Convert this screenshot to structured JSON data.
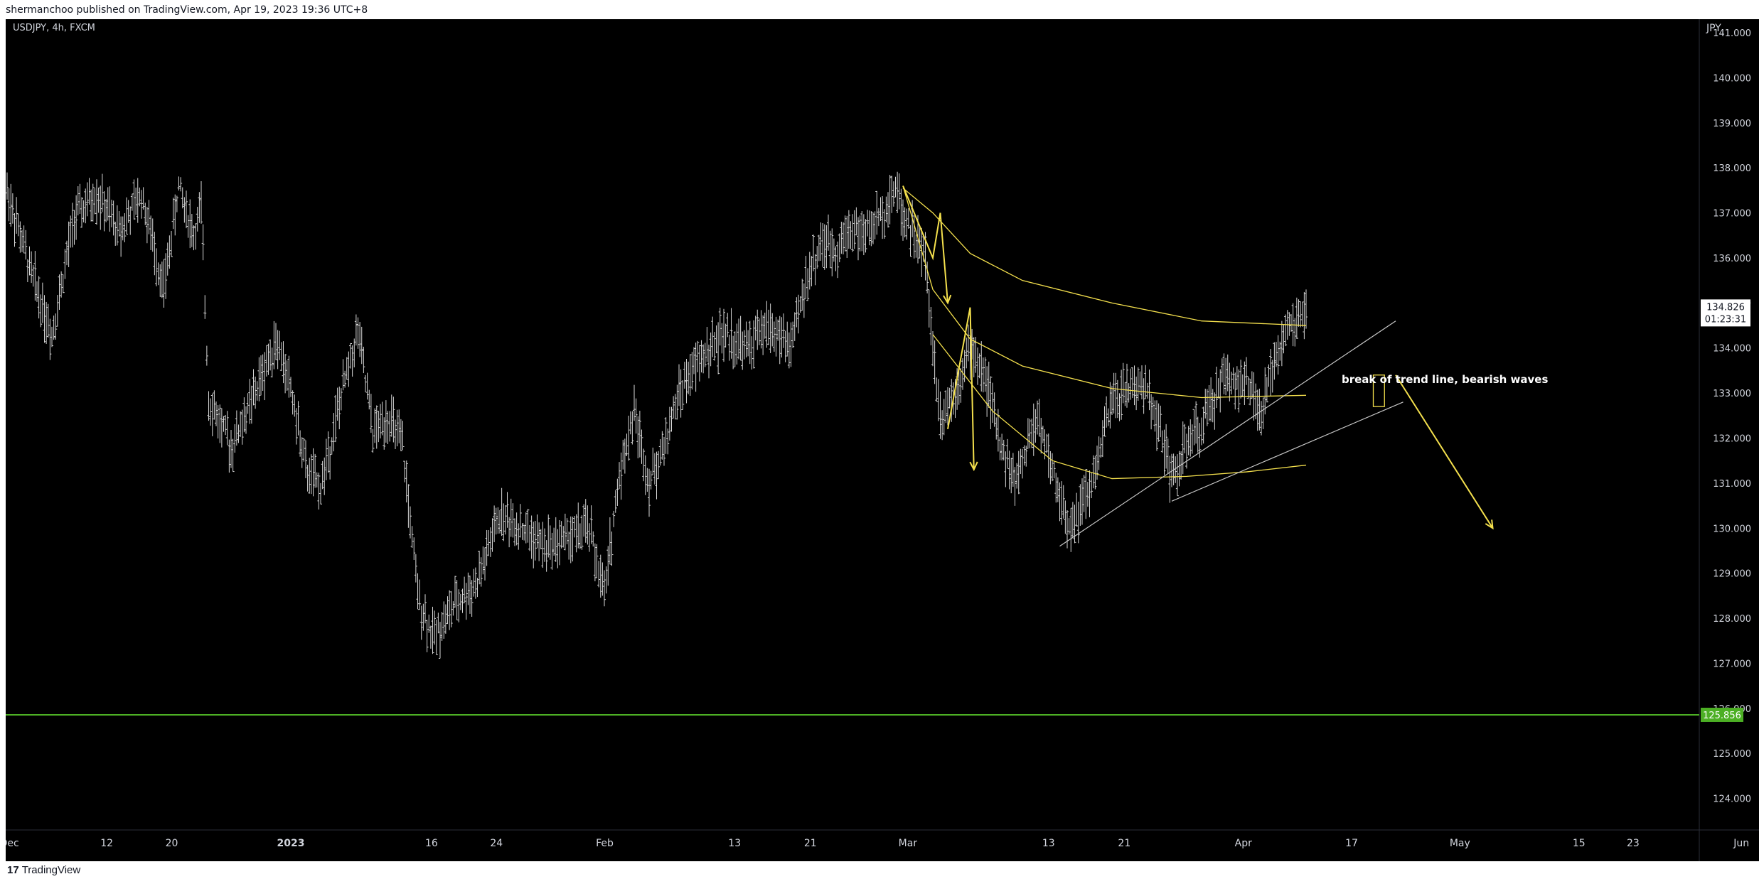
{
  "header": {
    "published_text": "shermanchoo published on TradingView.com, Apr 19, 2023 19:36 UTC+8"
  },
  "footer": {
    "brand": "TradingView",
    "brand_mark": "17"
  },
  "chart": {
    "symbol_label": "USDJPY, 4h, FXCM",
    "currency": "JPY",
    "price_badge": {
      "price": "134.826",
      "countdown": "01:23:31"
    },
    "support_badge": "125.856",
    "annotation": "break of trend line, bearish waves",
    "colors": {
      "background": "#000000",
      "bars": "#d8d8d8",
      "drawing": "#f4e04d",
      "trendline": "#c8c8c8",
      "support": "#4caf24",
      "axis_text": "#d1d4dc"
    }
  },
  "chart_data": {
    "type": "ohlc",
    "timeframe": "4h",
    "y_axis": {
      "ticks": [
        "124.000",
        "125.000",
        "126.000",
        "127.000",
        "128.000",
        "129.000",
        "130.000",
        "131.000",
        "132.000",
        "133.000",
        "134.000",
        "135.000",
        "136.000",
        "137.000",
        "138.000",
        "139.000",
        "140.000",
        "141.000"
      ],
      "range": [
        123.3,
        141.3
      ]
    },
    "x_axis": {
      "ticks": [
        "Dec",
        "12",
        "20",
        "2023",
        "16",
        "24",
        "Feb",
        "13",
        "21",
        "Mar",
        "13",
        "21",
        "Apr",
        "17",
        "May",
        "15",
        "23",
        "Jun"
      ]
    },
    "price_path": [
      [
        0,
        137.5
      ],
      [
        3,
        135.8
      ],
      [
        6,
        134.3
      ],
      [
        9,
        136.9
      ],
      [
        12,
        137.4
      ],
      [
        15,
        136.6
      ],
      [
        18,
        137.4
      ],
      [
        21,
        135.3
      ],
      [
        23,
        137.6
      ],
      [
        25,
        136.5
      ],
      [
        26,
        137.1
      ],
      [
        27,
        132.9
      ],
      [
        30,
        131.8
      ],
      [
        33,
        132.9
      ],
      [
        36,
        134.2
      ],
      [
        38,
        133.1
      ],
      [
        40,
        131.3
      ],
      [
        42,
        130.9
      ],
      [
        45,
        133.1
      ],
      [
        47,
        134.4
      ],
      [
        49,
        132.1
      ],
      [
        51,
        132.5
      ],
      [
        53,
        131.8
      ],
      [
        55,
        128.5
      ],
      [
        57,
        127.6
      ],
      [
        60,
        128.3
      ],
      [
        63,
        128.8
      ],
      [
        66,
        130.3
      ],
      [
        69,
        130.0
      ],
      [
        72,
        129.6
      ],
      [
        75,
        129.8
      ],
      [
        78,
        130.0
      ],
      [
        80,
        128.5
      ],
      [
        82,
        131.2
      ],
      [
        84,
        132.6
      ],
      [
        86,
        131.0
      ],
      [
        88,
        131.8
      ],
      [
        90,
        133.0
      ],
      [
        93,
        133.8
      ],
      [
        96,
        134.3
      ],
      [
        99,
        134.0
      ],
      [
        102,
        134.5
      ],
      [
        105,
        134.0
      ],
      [
        107,
        135.5
      ],
      [
        109,
        136.3
      ],
      [
        111,
        136.2
      ],
      [
        113,
        136.7
      ],
      [
        115,
        136.5
      ],
      [
        118,
        137.2
      ],
      [
        119,
        137.6
      ],
      [
        120,
        137.0
      ],
      [
        123,
        136.0
      ],
      [
        124,
        134.0
      ],
      [
        125,
        132.5
      ],
      [
        127,
        133.1
      ],
      [
        129,
        134.0
      ],
      [
        131,
        133.4
      ],
      [
        133,
        131.9
      ],
      [
        135,
        131.0
      ],
      [
        138,
        132.5
      ],
      [
        141,
        130.7
      ],
      [
        142,
        130.0
      ],
      [
        145,
        130.8
      ],
      [
        148,
        132.8
      ],
      [
        151,
        133.2
      ],
      [
        153,
        133.0
      ],
      [
        155,
        131.8
      ],
      [
        156,
        131.1
      ],
      [
        158,
        131.8
      ],
      [
        160,
        132.3
      ],
      [
        163,
        133.4
      ],
      [
        166,
        133.2
      ],
      [
        168,
        132.5
      ],
      [
        170,
        133.9
      ],
      [
        172,
        134.5
      ],
      [
        174,
        134.8
      ]
    ],
    "ma_lines": [
      {
        "points": [
          [
            120,
            137.55
          ],
          [
            124,
            137.0
          ],
          [
            129,
            136.1
          ],
          [
            136,
            135.5
          ],
          [
            148,
            135.0
          ],
          [
            160,
            134.6
          ],
          [
            174,
            134.5
          ]
        ]
      },
      {
        "points": [
          [
            120,
            137.6
          ],
          [
            124,
            135.3
          ],
          [
            129,
            134.2
          ],
          [
            136,
            133.6
          ],
          [
            148,
            133.1
          ],
          [
            160,
            132.9
          ],
          [
            174,
            132.95
          ]
        ]
      },
      {
        "points": [
          [
            124,
            134.3
          ],
          [
            132,
            132.6
          ],
          [
            140,
            131.5
          ],
          [
            148,
            131.1
          ],
          [
            158,
            131.15
          ],
          [
            166,
            131.25
          ],
          [
            174,
            131.4
          ]
        ]
      }
    ],
    "trend_lines": [
      {
        "from": [
          141,
          129.6
        ],
        "to": [
          186,
          134.6
        ]
      },
      {
        "from": [
          156,
          130.6
        ],
        "to": [
          187,
          132.8
        ]
      }
    ],
    "wave_arrows": [
      [
        [
          120,
          137.6
        ],
        [
          124,
          136.0
        ],
        [
          125,
          137.0
        ],
        [
          126,
          135.0
        ]
      ],
      [
        [
          126,
          132.2
        ],
        [
          129,
          134.9
        ],
        [
          129.5,
          131.3
        ]
      ]
    ],
    "target_arrow": {
      "from": [
        186,
        133.4
      ],
      "to": [
        199,
        130.0
      ]
    },
    "marker_box": {
      "x0": 183,
      "x1": 184.5,
      "y_top": 133.4,
      "y_bottom": 132.7
    },
    "support_level": 125.856,
    "last_price": 134.826
  }
}
